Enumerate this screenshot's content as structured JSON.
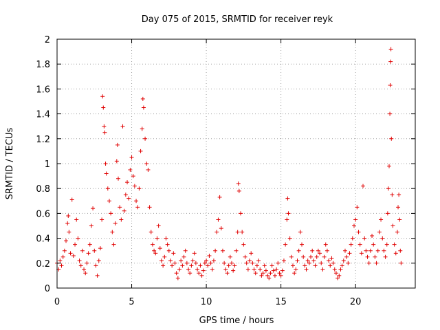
{
  "chart_data": {
    "type": "scatter",
    "title": "Day 075 of 2015, SRMTID for receiver reyk",
    "xlabel": "GPS time / hours",
    "ylabel": "SRMTID / TECUs",
    "xlim": [
      0,
      24
    ],
    "ylim": [
      0,
      2
    ],
    "x_ticks": [
      0,
      5,
      10,
      15,
      20
    ],
    "x_tick_labels": [
      "0",
      "5",
      "10",
      "15",
      "20"
    ],
    "y_ticks": [
      0,
      0.2,
      0.4,
      0.6,
      0.8,
      1,
      1.2,
      1.4,
      1.6,
      1.8,
      2
    ],
    "y_tick_labels": [
      "0",
      "0.2",
      "0.4",
      "0.6",
      "0.8",
      "1",
      "1.2",
      "1.4",
      "1.6",
      "1.8",
      "2"
    ],
    "grid": true,
    "marker": "+",
    "color": "#e00000",
    "series": [
      {
        "name": "SRMTID",
        "points": [
          [
            0.0,
            0.2
          ],
          [
            0.1,
            0.15
          ],
          [
            0.2,
            0.22
          ],
          [
            0.3,
            0.18
          ],
          [
            0.4,
            0.25
          ],
          [
            0.5,
            0.3
          ],
          [
            0.6,
            0.38
          ],
          [
            0.7,
            0.52
          ],
          [
            0.75,
            0.58
          ],
          [
            0.8,
            0.45
          ],
          [
            0.9,
            0.28
          ],
          [
            1.0,
            0.71
          ],
          [
            1.1,
            0.26
          ],
          [
            1.2,
            0.35
          ],
          [
            1.3,
            0.55
          ],
          [
            1.4,
            0.4
          ],
          [
            1.5,
            0.22
          ],
          [
            1.6,
            0.18
          ],
          [
            1.7,
            0.3
          ],
          [
            1.8,
            0.15
          ],
          [
            1.9,
            0.12
          ],
          [
            2.0,
            0.2
          ],
          [
            2.1,
            0.28
          ],
          [
            2.2,
            0.35
          ],
          [
            2.3,
            0.5
          ],
          [
            2.4,
            0.64
          ],
          [
            2.5,
            0.3
          ],
          [
            2.6,
            0.18
          ],
          [
            2.7,
            0.1
          ],
          [
            2.8,
            0.22
          ],
          [
            2.9,
            0.32
          ],
          [
            3.0,
            0.55
          ],
          [
            3.05,
            1.54
          ],
          [
            3.1,
            1.45
          ],
          [
            3.15,
            1.3
          ],
          [
            3.2,
            1.25
          ],
          [
            3.25,
            1.0
          ],
          [
            3.3,
            0.92
          ],
          [
            3.4,
            0.8
          ],
          [
            3.5,
            0.7
          ],
          [
            3.6,
            0.6
          ],
          [
            3.7,
            0.45
          ],
          [
            3.8,
            0.35
          ],
          [
            3.9,
            0.52
          ],
          [
            4.0,
            1.02
          ],
          [
            4.05,
            1.15
          ],
          [
            4.1,
            0.88
          ],
          [
            4.2,
            0.65
          ],
          [
            4.3,
            0.55
          ],
          [
            4.4,
            1.3
          ],
          [
            4.5,
            0.62
          ],
          [
            4.6,
            0.75
          ],
          [
            4.7,
            0.85
          ],
          [
            4.8,
            0.72
          ],
          [
            4.9,
            0.95
          ],
          [
            5.0,
            1.05
          ],
          [
            5.1,
            0.9
          ],
          [
            5.2,
            0.82
          ],
          [
            5.3,
            0.7
          ],
          [
            5.4,
            0.65
          ],
          [
            5.5,
            0.8
          ],
          [
            5.6,
            1.1
          ],
          [
            5.7,
            1.28
          ],
          [
            5.75,
            1.52
          ],
          [
            5.8,
            1.45
          ],
          [
            5.9,
            1.2
          ],
          [
            6.0,
            1.0
          ],
          [
            6.1,
            0.95
          ],
          [
            6.2,
            0.65
          ],
          [
            6.3,
            0.45
          ],
          [
            6.4,
            0.35
          ],
          [
            6.5,
            0.3
          ],
          [
            6.6,
            0.28
          ],
          [
            6.7,
            0.4
          ],
          [
            6.8,
            0.5
          ],
          [
            6.9,
            0.32
          ],
          [
            7.0,
            0.22
          ],
          [
            7.1,
            0.18
          ],
          [
            7.2,
            0.25
          ],
          [
            7.3,
            0.4
          ],
          [
            7.4,
            0.35
          ],
          [
            7.5,
            0.3
          ],
          [
            7.6,
            0.22
          ],
          [
            7.7,
            0.18
          ],
          [
            7.8,
            0.28
          ],
          [
            7.9,
            0.2
          ],
          [
            8.0,
            0.12
          ],
          [
            8.1,
            0.08
          ],
          [
            8.2,
            0.15
          ],
          [
            8.3,
            0.22
          ],
          [
            8.4,
            0.18
          ],
          [
            8.5,
            0.25
          ],
          [
            8.6,
            0.3
          ],
          [
            8.7,
            0.2
          ],
          [
            8.8,
            0.15
          ],
          [
            8.9,
            0.12
          ],
          [
            9.0,
            0.18
          ],
          [
            9.1,
            0.22
          ],
          [
            9.2,
            0.28
          ],
          [
            9.3,
            0.2
          ],
          [
            9.4,
            0.15
          ],
          [
            9.5,
            0.12
          ],
          [
            9.6,
            0.18
          ],
          [
            9.7,
            0.1
          ],
          [
            9.8,
            0.14
          ],
          [
            9.9,
            0.2
          ],
          [
            10.0,
            0.22
          ],
          [
            10.1,
            0.18
          ],
          [
            10.2,
            0.26
          ],
          [
            10.3,
            0.2
          ],
          [
            10.4,
            0.15
          ],
          [
            10.5,
            0.22
          ],
          [
            10.6,
            0.3
          ],
          [
            10.7,
            0.45
          ],
          [
            10.8,
            0.55
          ],
          [
            10.9,
            0.73
          ],
          [
            11.0,
            0.48
          ],
          [
            11.1,
            0.3
          ],
          [
            11.2,
            0.2
          ],
          [
            11.3,
            0.15
          ],
          [
            11.4,
            0.12
          ],
          [
            11.5,
            0.18
          ],
          [
            11.6,
            0.25
          ],
          [
            11.7,
            0.2
          ],
          [
            11.8,
            0.14
          ],
          [
            11.9,
            0.18
          ],
          [
            12.0,
            0.3
          ],
          [
            12.1,
            0.45
          ],
          [
            12.15,
            0.84
          ],
          [
            12.2,
            0.78
          ],
          [
            12.3,
            0.6
          ],
          [
            12.4,
            0.45
          ],
          [
            12.5,
            0.35
          ],
          [
            12.6,
            0.25
          ],
          [
            12.7,
            0.2
          ],
          [
            12.8,
            0.15
          ],
          [
            12.9,
            0.22
          ],
          [
            13.0,
            0.28
          ],
          [
            13.1,
            0.2
          ],
          [
            13.2,
            0.15
          ],
          [
            13.3,
            0.12
          ],
          [
            13.4,
            0.18
          ],
          [
            13.5,
            0.22
          ],
          [
            13.6,
            0.15
          ],
          [
            13.7,
            0.1
          ],
          [
            13.8,
            0.12
          ],
          [
            13.9,
            0.18
          ],
          [
            14.0,
            0.14
          ],
          [
            14.1,
            0.1
          ],
          [
            14.2,
            0.08
          ],
          [
            14.3,
            0.12
          ],
          [
            14.4,
            0.18
          ],
          [
            14.5,
            0.14
          ],
          [
            14.6,
            0.1
          ],
          [
            14.7,
            0.15
          ],
          [
            14.8,
            0.2
          ],
          [
            14.9,
            0.12
          ],
          [
            15.0,
            0.1
          ],
          [
            15.1,
            0.14
          ],
          [
            15.2,
            0.22
          ],
          [
            15.3,
            0.35
          ],
          [
            15.4,
            0.55
          ],
          [
            15.45,
            0.72
          ],
          [
            15.5,
            0.6
          ],
          [
            15.6,
            0.4
          ],
          [
            15.7,
            0.25
          ],
          [
            15.8,
            0.18
          ],
          [
            15.9,
            0.12
          ],
          [
            16.0,
            0.15
          ],
          [
            16.1,
            0.22
          ],
          [
            16.2,
            0.3
          ],
          [
            16.3,
            0.45
          ],
          [
            16.4,
            0.35
          ],
          [
            16.5,
            0.25
          ],
          [
            16.6,
            0.18
          ],
          [
            16.7,
            0.15
          ],
          [
            16.8,
            0.22
          ],
          [
            16.9,
            0.2
          ],
          [
            17.0,
            0.25
          ],
          [
            17.1,
            0.3
          ],
          [
            17.2,
            0.22
          ],
          [
            17.3,
            0.18
          ],
          [
            17.4,
            0.25
          ],
          [
            17.5,
            0.3
          ],
          [
            17.6,
            0.28
          ],
          [
            17.7,
            0.2
          ],
          [
            17.8,
            0.15
          ],
          [
            17.9,
            0.25
          ],
          [
            18.0,
            0.35
          ],
          [
            18.1,
            0.3
          ],
          [
            18.2,
            0.22
          ],
          [
            18.3,
            0.18
          ],
          [
            18.4,
            0.24
          ],
          [
            18.5,
            0.2
          ],
          [
            18.6,
            0.15
          ],
          [
            18.7,
            0.12
          ],
          [
            18.8,
            0.08
          ],
          [
            18.9,
            0.1
          ],
          [
            19.0,
            0.15
          ],
          [
            19.1,
            0.18
          ],
          [
            19.2,
            0.22
          ],
          [
            19.3,
            0.3
          ],
          [
            19.4,
            0.25
          ],
          [
            19.5,
            0.2
          ],
          [
            19.6,
            0.28
          ],
          [
            19.7,
            0.35
          ],
          [
            19.8,
            0.4
          ],
          [
            19.9,
            0.5
          ],
          [
            20.0,
            0.55
          ],
          [
            20.1,
            0.65
          ],
          [
            20.2,
            0.45
          ],
          [
            20.3,
            0.35
          ],
          [
            20.4,
            0.28
          ],
          [
            20.5,
            0.82
          ],
          [
            20.6,
            0.4
          ],
          [
            20.7,
            0.3
          ],
          [
            20.8,
            0.25
          ],
          [
            20.9,
            0.2
          ],
          [
            21.0,
            0.3
          ],
          [
            21.1,
            0.42
          ],
          [
            21.2,
            0.35
          ],
          [
            21.3,
            0.25
          ],
          [
            21.4,
            0.2
          ],
          [
            21.5,
            0.3
          ],
          [
            21.6,
            0.45
          ],
          [
            21.7,
            0.55
          ],
          [
            21.8,
            0.4
          ],
          [
            21.9,
            0.3
          ],
          [
            22.0,
            0.25
          ],
          [
            22.1,
            0.35
          ],
          [
            22.15,
            0.6
          ],
          [
            22.2,
            0.8
          ],
          [
            22.25,
            0.98
          ],
          [
            22.3,
            1.4
          ],
          [
            22.32,
            1.63
          ],
          [
            22.35,
            1.82
          ],
          [
            22.37,
            1.92
          ],
          [
            22.4,
            1.2
          ],
          [
            22.45,
            0.75
          ],
          [
            22.5,
            0.5
          ],
          [
            22.6,
            0.35
          ],
          [
            22.7,
            0.28
          ],
          [
            22.8,
            0.45
          ],
          [
            22.85,
            0.65
          ],
          [
            22.9,
            0.75
          ],
          [
            22.95,
            0.55
          ],
          [
            23.0,
            0.3
          ],
          [
            23.05,
            0.2
          ]
        ]
      }
    ]
  }
}
